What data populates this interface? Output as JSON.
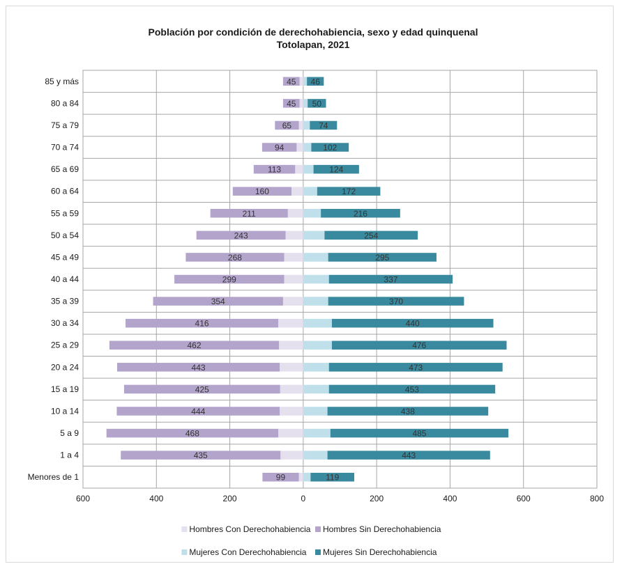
{
  "chart_data": {
    "type": "bar",
    "orientation": "horizontal",
    "title": "Población por condición de derechohabiencia, sexo y edad quinquenal",
    "subtitle": "Totolapan, 2021",
    "categories": [
      "85 y más",
      "80 a 84",
      "75 a 79",
      "70 a 74",
      "65 a 69",
      "60 a 64",
      "55 a 59",
      "50 a 54",
      "45 a 49",
      "40 a 44",
      "35 a 39",
      "30 a 34",
      "25 a 29",
      "20 a 24",
      "15 a 19",
      "10 a 14",
      "5 a 9",
      "1 a 4",
      "Menores de 1"
    ],
    "x_ticks": [
      "600",
      "400",
      "200",
      "0",
      "200",
      "400",
      "600",
      "800"
    ],
    "xlim": [
      -600,
      800
    ],
    "grid": true,
    "legend_position": "bottom",
    "series": [
      {
        "name": "Hombres Con Derechohabiencia",
        "color": "#e5e0ee",
        "side": "left",
        "values": [
          10,
          10,
          12,
          18,
          22,
          32,
          42,
          48,
          52,
          52,
          55,
          68,
          66,
          64,
          63,
          64,
          68,
          62,
          12
        ]
      },
      {
        "name": "Hombres Sin Derechohabiencia",
        "color": "#b3a4cc",
        "side": "left",
        "labeled": true,
        "values": [
          45,
          45,
          65,
          94,
          113,
          160,
          211,
          243,
          268,
          299,
          354,
          416,
          462,
          443,
          425,
          444,
          468,
          435,
          99
        ]
      },
      {
        "name": "Mujeres Con Derechohabiencia",
        "color": "#bfe0ea",
        "side": "right",
        "values": [
          10,
          12,
          18,
          22,
          28,
          38,
          48,
          58,
          68,
          70,
          68,
          78,
          78,
          70,
          70,
          66,
          74,
          66,
          20
        ]
      },
      {
        "name": "Mujeres Sin Derechohabiencia",
        "color": "#3a8a9f",
        "side": "right",
        "labeled": true,
        "values": [
          46,
          50,
          74,
          102,
          124,
          172,
          216,
          254,
          295,
          337,
          370,
          440,
          476,
          473,
          453,
          438,
          485,
          443,
          119
        ]
      }
    ]
  }
}
